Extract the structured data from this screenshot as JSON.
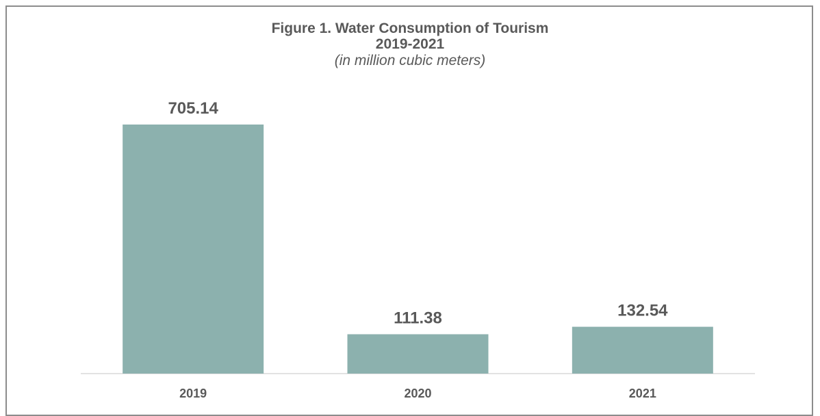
{
  "chart_data": {
    "type": "bar",
    "title": "Figure 1. Water Consumption of Tourism",
    "title_line2": "2019-2021",
    "subtitle": "(in million cubic meters)",
    "categories": [
      "2019",
      "2020",
      "2021"
    ],
    "values": [
      705.14,
      111.38,
      132.54
    ],
    "value_labels": [
      "705.14",
      "111.38",
      "132.54"
    ],
    "ylim": [
      0,
      750
    ],
    "grid": false,
    "legend": "none",
    "bar_color": "#8cb1ae",
    "axis_color": "#d9d9d9",
    "text_color": "#595959"
  }
}
